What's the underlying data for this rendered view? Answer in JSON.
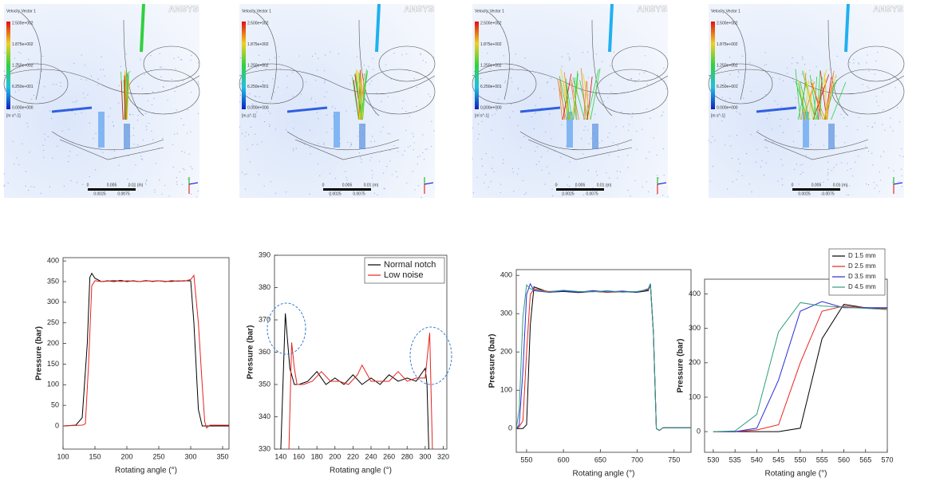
{
  "cfd_images": {
    "logo": "ANSYS",
    "colorbar_title": "Velocity Vector 1",
    "colorbar_labels": [
      "2.500e+002",
      "1.875e+002",
      "1.250e+002",
      "6.250e+001",
      "0.000e+000"
    ],
    "colorbar_unit": "[m s^-1]",
    "scale_labels": [
      "0",
      "0.005",
      "0.01 (m)",
      "0.0025",
      "0.0075"
    ]
  },
  "chart_data": [
    {
      "type": "line",
      "x_label": "Rotating angle (°)",
      "y_label": "Pressure (bar)",
      "xlim": [
        100,
        360
      ],
      "xticks": [
        100,
        150,
        200,
        250,
        300,
        350
      ],
      "ylim": [
        -56,
        408
      ],
      "yticks": [
        0,
        50,
        100,
        150,
        200,
        250,
        300,
        350,
        400
      ],
      "series": [
        {
          "color": "#000000",
          "x": [
            100,
            120,
            130,
            138,
            142,
            145,
            150,
            160,
            170,
            180,
            190,
            200,
            210,
            220,
            230,
            240,
            250,
            260,
            270,
            280,
            290,
            300,
            305,
            312,
            318,
            360
          ],
          "values": [
            0,
            2,
            20,
            200,
            360,
            370,
            358,
            350,
            352,
            350,
            353,
            350,
            352,
            350,
            352,
            351,
            352,
            350,
            352,
            351,
            352,
            352,
            250,
            40,
            0,
            0
          ]
        },
        {
          "color": "#e8231f",
          "x": [
            100,
            130,
            135,
            140,
            145,
            150,
            160,
            170,
            180,
            190,
            200,
            210,
            220,
            230,
            240,
            250,
            260,
            270,
            280,
            290,
            300,
            305,
            312,
            318,
            322,
            325,
            330,
            360
          ],
          "values": [
            0,
            2,
            5,
            150,
            340,
            352,
            350,
            351,
            353,
            350,
            352,
            351,
            350,
            353,
            350,
            352,
            351,
            350,
            352,
            351,
            355,
            365,
            250,
            100,
            10,
            -5,
            2,
            2
          ]
        }
      ]
    },
    {
      "type": "line",
      "x_label": "Rotating angle (°)",
      "y_label": "Pressure (bar)",
      "xlim": [
        133,
        324
      ],
      "xticks": [
        140,
        160,
        180,
        200,
        220,
        240,
        260,
        280,
        300,
        320
      ],
      "ylim": [
        330,
        390
      ],
      "yticks": [
        330,
        340,
        350,
        360,
        370,
        380,
        390
      ],
      "legend": "upper right",
      "series": [
        {
          "name": "Normal notch",
          "color": "#000000",
          "x": [
            140,
            145,
            150,
            155,
            160,
            170,
            180,
            190,
            200,
            210,
            220,
            230,
            240,
            250,
            260,
            270,
            280,
            290,
            300,
            302,
            304
          ],
          "values": [
            330,
            372,
            355,
            350,
            350,
            351,
            354,
            350,
            352,
            350,
            353,
            350,
            352,
            350,
            353,
            351,
            352,
            351,
            355,
            350,
            330
          ]
        },
        {
          "name": "Low noise",
          "color": "#e8231f",
          "x": [
            149,
            152,
            155,
            158,
            165,
            175,
            185,
            195,
            205,
            215,
            225,
            230,
            240,
            250,
            260,
            270,
            280,
            290,
            300,
            305,
            308
          ],
          "values": [
            330,
            363,
            355,
            350,
            350,
            351,
            354,
            351,
            351,
            350,
            353,
            356,
            351,
            351,
            351,
            354,
            351,
            352,
            352,
            366,
            330
          ]
        }
      ]
    },
    {
      "type": "line",
      "x_label": "Rotating angle (°)",
      "y_label": "Pressure (bar)",
      "xlim": [
        536,
        773
      ],
      "xticks": [
        550,
        600,
        650,
        700,
        750
      ],
      "ylim": [
        -62,
        415
      ],
      "yticks": [
        0,
        100,
        200,
        300,
        400
      ],
      "series": [
        {
          "color": "#000000",
          "x": [
            536,
            545,
            550,
            555,
            560,
            580,
            600,
            620,
            640,
            660,
            680,
            700,
            715,
            718,
            722,
            726,
            730,
            735,
            773
          ],
          "values": [
            0,
            0,
            10,
            270,
            370,
            356,
            358,
            355,
            358,
            356,
            357,
            356,
            360,
            375,
            250,
            0,
            -5,
            2,
            2
          ]
        },
        {
          "color": "#e8231f",
          "x": [
            536,
            540,
            545,
            550,
            555,
            560,
            580,
            600,
            620,
            640,
            660,
            680,
            700,
            715,
            718,
            722,
            726,
            730,
            735,
            773
          ],
          "values": [
            0,
            5,
            20,
            200,
            350,
            365,
            358,
            360,
            357,
            359,
            356,
            358,
            357,
            362,
            372,
            250,
            0,
            -5,
            2,
            2
          ]
        },
        {
          "color": "#2b2bd9",
          "x": [
            536,
            540,
            545,
            550,
            555,
            560,
            580,
            600,
            620,
            640,
            660,
            680,
            700,
            715,
            718,
            722,
            726,
            730,
            735,
            773
          ],
          "values": [
            0,
            10,
            150,
            350,
            378,
            360,
            356,
            359,
            356,
            360,
            357,
            359,
            356,
            365,
            378,
            250,
            0,
            -5,
            2,
            2
          ]
        },
        {
          "color": "#2e9e7e",
          "x": [
            536,
            540,
            545,
            550,
            555,
            560,
            580,
            600,
            620,
            640,
            660,
            680,
            700,
            715,
            718,
            722,
            726,
            730,
            735,
            773
          ],
          "values": [
            0,
            50,
            290,
            375,
            365,
            362,
            357,
            361,
            358,
            357,
            360,
            356,
            358,
            363,
            376,
            250,
            0,
            -5,
            2,
            2
          ]
        }
      ]
    },
    {
      "type": "line",
      "x_label": "Rotating angle (°)",
      "y_label": "Pressure (bar)",
      "xlim": [
        528,
        570
      ],
      "xticks": [
        530,
        535,
        540,
        545,
        550,
        555,
        560,
        565,
        570
      ],
      "ylim": [
        -60,
        443
      ],
      "yticks": [
        0,
        100,
        200,
        300,
        400
      ],
      "legend": "upper right",
      "series": [
        {
          "name": "D 1.5 mm",
          "color": "#000000",
          "x": [
            530,
            535,
            540,
            545,
            550,
            555,
            560,
            565,
            570
          ],
          "values": [
            0,
            0,
            0,
            0,
            10,
            270,
            370,
            360,
            355
          ]
        },
        {
          "name": "D 2.5 mm",
          "color": "#e8231f",
          "x": [
            530,
            535,
            540,
            545,
            550,
            555,
            560,
            565,
            570
          ],
          "values": [
            0,
            0,
            5,
            20,
            200,
            350,
            365,
            360,
            358
          ]
        },
        {
          "name": "D 3.5 mm",
          "color": "#2b2bd9",
          "x": [
            530,
            535,
            540,
            545,
            550,
            555,
            560,
            565,
            570
          ],
          "values": [
            0,
            0,
            10,
            150,
            350,
            378,
            360,
            360,
            360
          ]
        },
        {
          "name": "D 4.5 mm",
          "color": "#2e9e7e",
          "x": [
            530,
            535,
            540,
            545,
            550,
            555,
            560,
            565,
            570
          ],
          "values": [
            0,
            2,
            50,
            290,
            375,
            365,
            362,
            358,
            355
          ]
        }
      ]
    }
  ]
}
